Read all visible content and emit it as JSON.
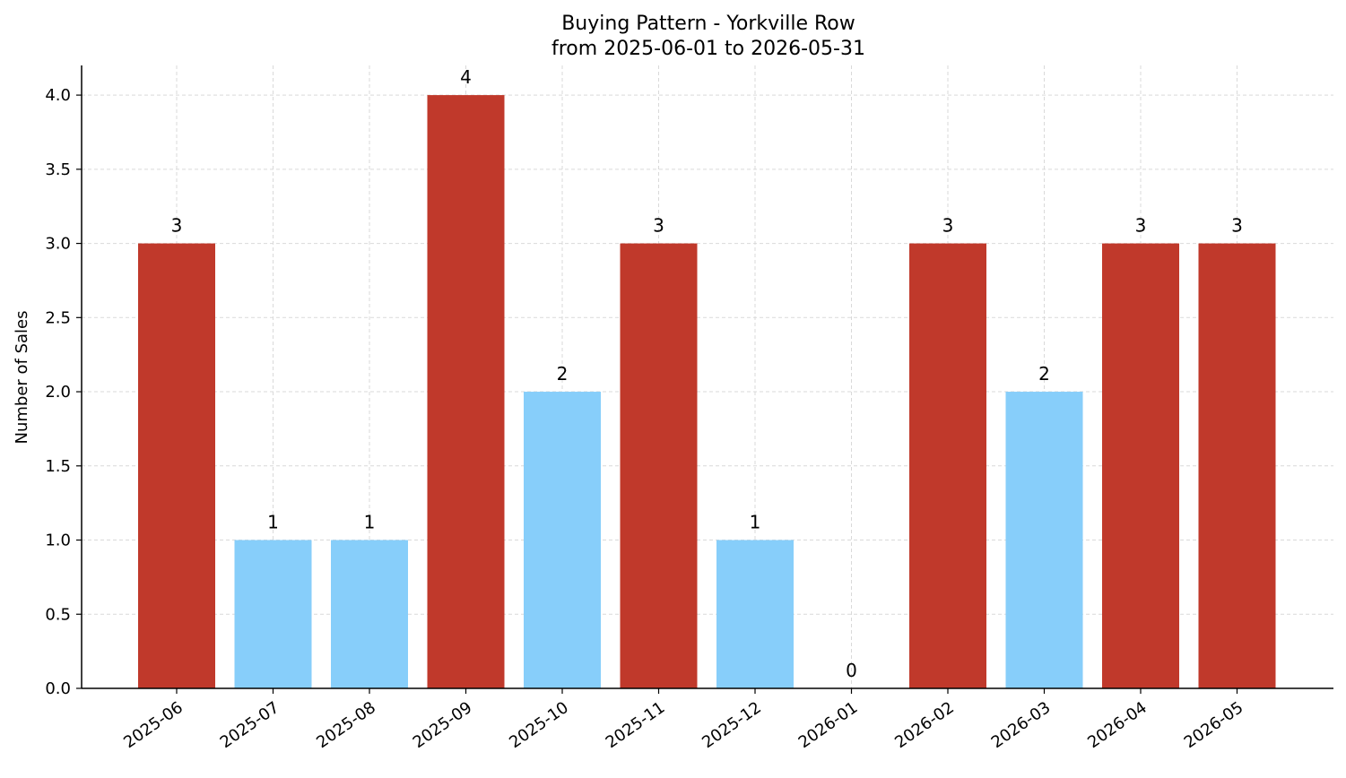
{
  "chart_data": {
    "type": "bar",
    "title": "Buying Pattern - Yorkville Row",
    "subtitle": "from 2025-06-01 to 2026-05-31",
    "xlabel": "",
    "ylabel": "Number of Sales",
    "categories": [
      "2025-06",
      "2025-07",
      "2025-08",
      "2025-09",
      "2025-10",
      "2025-11",
      "2025-12",
      "2026-01",
      "2026-02",
      "2026-03",
      "2026-04",
      "2026-05"
    ],
    "values": [
      3,
      1,
      1,
      4,
      2,
      3,
      1,
      0,
      3,
      2,
      3,
      3
    ],
    "data_labels": [
      "3",
      "1",
      "1",
      "4",
      "2",
      "3",
      "1",
      "0",
      "3",
      "2",
      "3",
      "3"
    ],
    "y_ticks": [
      "0.0",
      "0.5",
      "1.0",
      "1.5",
      "2.0",
      "2.5",
      "3.0",
      "3.5",
      "4.0"
    ],
    "ylim": [
      0,
      4.2
    ],
    "grid": true,
    "legend": "none",
    "colors": {
      "high": "#c0392b",
      "low": "#87cefa",
      "grid": "#d9d9d9",
      "axis": "#000000"
    },
    "color_rule": "bars with value of 3 or more are red, bars below 3 are light blue"
  }
}
